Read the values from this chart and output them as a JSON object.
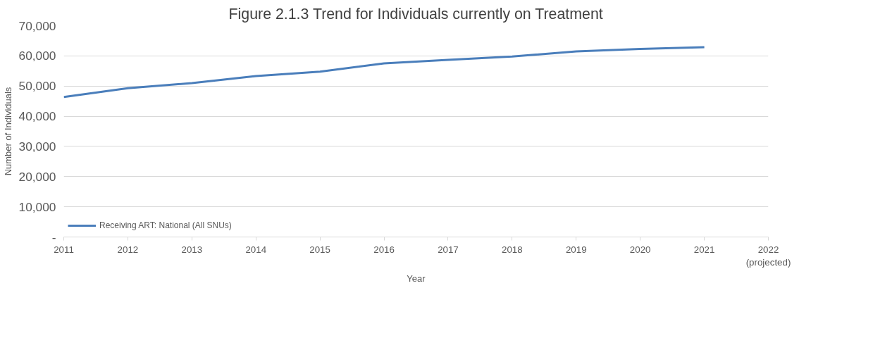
{
  "chart_data": {
    "type": "line",
    "title": "Figure 2.1.3 Trend for Individuals currently on Treatment",
    "xlabel": "Year",
    "ylabel": "Number of Individuals",
    "x": [
      2011,
      2012,
      2013,
      2014,
      2015,
      2016,
      2017,
      2018,
      2019,
      2020,
      2021
    ],
    "series": [
      {
        "name": "Receiving ART: National (All SNUs)",
        "color": "#4a7ebb",
        "values": [
          46400,
          49300,
          51000,
          53300,
          54800,
          57500,
          58700,
          59800,
          61500,
          62300,
          62900
        ]
      }
    ],
    "xlim": [
      2011,
      2022
    ],
    "xticks": [
      2011,
      2012,
      2013,
      2014,
      2015,
      2016,
      2017,
      2018,
      2019,
      2020,
      2021,
      {
        "value": 2022,
        "label": "2022\n(projected)"
      }
    ],
    "ylim": [
      0,
      70000
    ],
    "yticks": [
      {
        "value": 0,
        "label": "-"
      },
      {
        "value": 10000,
        "label": "10,000"
      },
      {
        "value": 20000,
        "label": "20,000"
      },
      {
        "value": 30000,
        "label": "30,000"
      },
      {
        "value": 40000,
        "label": "40,000"
      },
      {
        "value": 50000,
        "label": "50,000"
      },
      {
        "value": 60000,
        "label": "60,000"
      },
      {
        "value": 70000,
        "label": "70,000"
      }
    ],
    "grid": "y",
    "legend": "bottom left",
    "marker": "none",
    "line_style": "solid"
  }
}
